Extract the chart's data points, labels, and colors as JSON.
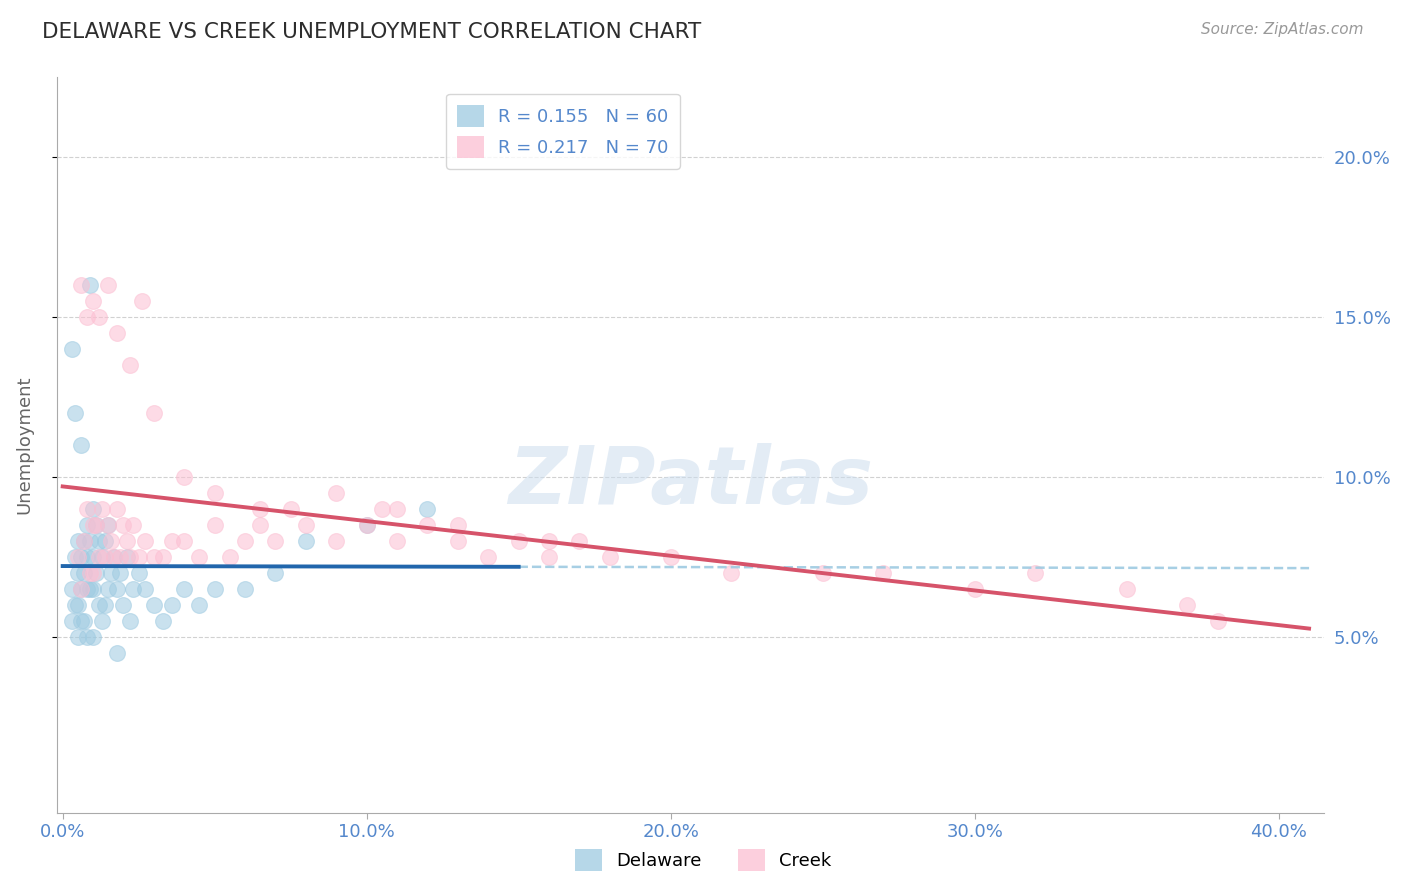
{
  "title": "DELAWARE VS CREEK UNEMPLOYMENT CORRELATION CHART",
  "source": "Source: ZipAtlas.com",
  "ylabel": "Unemployment",
  "xlim": [
    -0.002,
    0.415
  ],
  "ylim": [
    -0.005,
    0.225
  ],
  "yticks": [
    0.05,
    0.1,
    0.15,
    0.2
  ],
  "ytick_labels": [
    "5.0%",
    "10.0%",
    "15.0%",
    "20.0%"
  ],
  "xticks": [
    0.0,
    0.1,
    0.2,
    0.3,
    0.4
  ],
  "xtick_labels": [
    "0.0%",
    "10.0%",
    "20.0%",
    "30.0%",
    "40.0%"
  ],
  "delaware_color": "#9ecae1",
  "creek_color": "#fcbfd2",
  "delaware_line_color": "#2166ac",
  "creek_line_color": "#d6536a",
  "dashed_line_color": "#9ecae1",
  "legend_r1": "R = 0.155",
  "legend_n1": "N = 60",
  "legend_r2": "R = 0.217",
  "legend_n2": "N = 70",
  "legend_label1": "Delaware",
  "legend_label2": "Creek",
  "watermark": "ZIPatlas",
  "title_color": "#2d2d2d",
  "axis_color": "#5588cc",
  "grid_color": "#cccccc",
  "delaware_x": [
    0.003,
    0.003,
    0.004,
    0.004,
    0.005,
    0.005,
    0.005,
    0.005,
    0.006,
    0.006,
    0.006,
    0.007,
    0.007,
    0.007,
    0.008,
    0.008,
    0.008,
    0.008,
    0.009,
    0.009,
    0.01,
    0.01,
    0.01,
    0.01,
    0.011,
    0.011,
    0.012,
    0.012,
    0.013,
    0.013,
    0.014,
    0.014,
    0.015,
    0.015,
    0.016,
    0.017,
    0.018,
    0.018,
    0.019,
    0.02,
    0.021,
    0.022,
    0.023,
    0.025,
    0.027,
    0.03,
    0.033,
    0.036,
    0.04,
    0.045,
    0.05,
    0.06,
    0.07,
    0.08,
    0.1,
    0.12,
    0.003,
    0.004,
    0.006,
    0.009
  ],
  "delaware_y": [
    0.065,
    0.055,
    0.075,
    0.06,
    0.08,
    0.07,
    0.06,
    0.05,
    0.075,
    0.065,
    0.055,
    0.08,
    0.07,
    0.055,
    0.085,
    0.075,
    0.065,
    0.05,
    0.08,
    0.065,
    0.09,
    0.075,
    0.065,
    0.05,
    0.085,
    0.07,
    0.08,
    0.06,
    0.075,
    0.055,
    0.08,
    0.06,
    0.085,
    0.065,
    0.07,
    0.075,
    0.065,
    0.045,
    0.07,
    0.06,
    0.075,
    0.055,
    0.065,
    0.07,
    0.065,
    0.06,
    0.055,
    0.06,
    0.065,
    0.06,
    0.065,
    0.065,
    0.07,
    0.08,
    0.085,
    0.09,
    0.14,
    0.12,
    0.11,
    0.16
  ],
  "creek_x": [
    0.005,
    0.006,
    0.007,
    0.008,
    0.009,
    0.01,
    0.01,
    0.011,
    0.012,
    0.013,
    0.014,
    0.015,
    0.016,
    0.017,
    0.018,
    0.019,
    0.02,
    0.021,
    0.022,
    0.023,
    0.025,
    0.027,
    0.03,
    0.033,
    0.036,
    0.04,
    0.045,
    0.05,
    0.055,
    0.06,
    0.065,
    0.07,
    0.075,
    0.08,
    0.09,
    0.1,
    0.105,
    0.11,
    0.12,
    0.13,
    0.14,
    0.15,
    0.16,
    0.17,
    0.18,
    0.2,
    0.22,
    0.25,
    0.27,
    0.3,
    0.32,
    0.35,
    0.37,
    0.38,
    0.006,
    0.008,
    0.01,
    0.012,
    0.015,
    0.018,
    0.022,
    0.026,
    0.03,
    0.04,
    0.05,
    0.065,
    0.09,
    0.11,
    0.13,
    0.16
  ],
  "creek_y": [
    0.075,
    0.065,
    0.08,
    0.09,
    0.07,
    0.085,
    0.07,
    0.085,
    0.075,
    0.09,
    0.075,
    0.085,
    0.08,
    0.075,
    0.09,
    0.075,
    0.085,
    0.08,
    0.075,
    0.085,
    0.075,
    0.08,
    0.075,
    0.075,
    0.08,
    0.08,
    0.075,
    0.085,
    0.075,
    0.08,
    0.085,
    0.08,
    0.09,
    0.085,
    0.08,
    0.085,
    0.09,
    0.08,
    0.085,
    0.08,
    0.075,
    0.08,
    0.075,
    0.08,
    0.075,
    0.075,
    0.07,
    0.07,
    0.07,
    0.065,
    0.07,
    0.065,
    0.06,
    0.055,
    0.16,
    0.15,
    0.155,
    0.15,
    0.16,
    0.145,
    0.135,
    0.155,
    0.12,
    0.1,
    0.095,
    0.09,
    0.095,
    0.09,
    0.085,
    0.08
  ]
}
